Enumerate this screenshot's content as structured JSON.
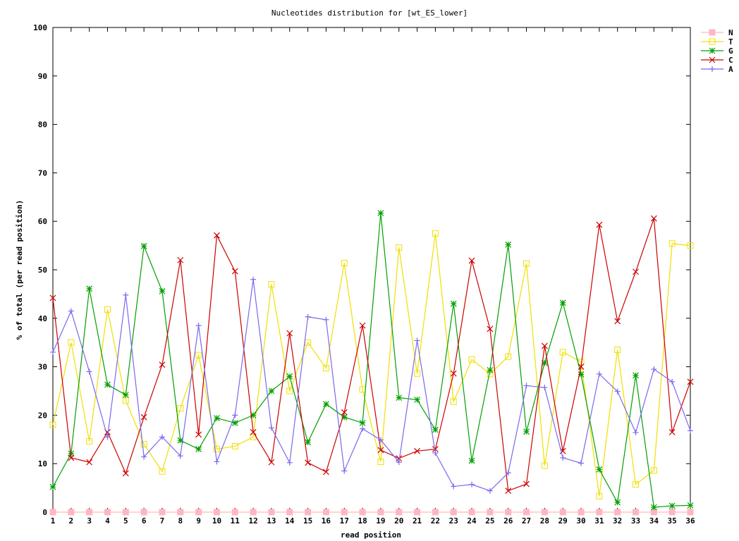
{
  "chart_data": {
    "type": "line",
    "title": "Nucleotides distribution for [wt_ES_lower]",
    "xlabel": "read position",
    "ylabel": "% of total (per read position)",
    "xlim": [
      1,
      36
    ],
    "ylim": [
      0,
      100
    ],
    "x": [
      1,
      2,
      3,
      4,
      5,
      6,
      7,
      8,
      9,
      10,
      11,
      12,
      13,
      14,
      15,
      16,
      17,
      18,
      19,
      20,
      21,
      22,
      23,
      24,
      25,
      26,
      27,
      28,
      29,
      30,
      31,
      32,
      33,
      34,
      35,
      36
    ],
    "yticks": [
      0,
      10,
      20,
      30,
      40,
      50,
      60,
      70,
      80,
      90,
      100
    ],
    "legend_position": "top-right",
    "grid": false,
    "series": [
      {
        "name": "N",
        "color": "#ffb6c1",
        "marker": "filled-square",
        "values": [
          0,
          0,
          0,
          0,
          0,
          0,
          0,
          0,
          0,
          0,
          0,
          0,
          0,
          0,
          0,
          0,
          0,
          0,
          0,
          0,
          0,
          0,
          0,
          0,
          0,
          0,
          0,
          0,
          0,
          0,
          0,
          0,
          0,
          0,
          0,
          0
        ]
      },
      {
        "name": "T",
        "color": "#f0e000",
        "marker": "open-square",
        "values": [
          18,
          35,
          14.6,
          41.8,
          23,
          14,
          8.4,
          21.4,
          32.4,
          13,
          13.6,
          15.5,
          47,
          25,
          35,
          29.7,
          51.4,
          25.3,
          10.4,
          54.6,
          28.6,
          57.5,
          22.8,
          31.5,
          28.5,
          32.1,
          51.3,
          9.6,
          33,
          31,
          3.3,
          33.5,
          5.7,
          8.6,
          55.4,
          55
        ]
      },
      {
        "name": "G",
        "color": "#00a000",
        "marker": "star",
        "values": [
          5.2,
          12.1,
          46.1,
          26.3,
          24.2,
          54.9,
          45.6,
          14.8,
          13,
          19.4,
          18.4,
          20,
          25,
          28,
          14.4,
          22.3,
          19.6,
          18.4,
          61.7,
          23.6,
          23.2,
          17,
          43,
          10.6,
          29.3,
          55.2,
          16.6,
          30.8,
          43.2,
          28.4,
          8.8,
          2,
          28.2,
          1,
          1.3,
          1.4
        ]
      },
      {
        "name": "C",
        "color": "#cc0000",
        "marker": "x",
        "values": [
          44.2,
          11.2,
          10.3,
          16.5,
          8,
          19.6,
          30.4,
          52,
          16,
          57.1,
          49.7,
          16.5,
          10.3,
          36.9,
          10.2,
          8.3,
          20.6,
          38.5,
          12.8,
          11.1,
          12.6,
          13,
          28.6,
          51.9,
          37.8,
          4.4,
          5.8,
          34.3,
          12.6,
          30,
          59.3,
          39.4,
          49.6,
          60.6,
          16.5,
          26.9
        ]
      },
      {
        "name": "A",
        "color": "#7b68ee",
        "marker": "plus",
        "values": [
          33,
          41.5,
          29,
          15.5,
          44.8,
          11.4,
          15.5,
          11.6,
          38.5,
          10.4,
          20,
          48,
          17.4,
          10.2,
          40.3,
          39.7,
          8.5,
          17.2,
          14.9,
          10.3,
          35.4,
          12.2,
          5.3,
          5.7,
          4.4,
          8.1,
          26.1,
          25.7,
          11.2,
          10.1,
          28.5,
          24.9,
          16.4,
          29.5,
          26.9,
          16.8
        ]
      }
    ]
  }
}
